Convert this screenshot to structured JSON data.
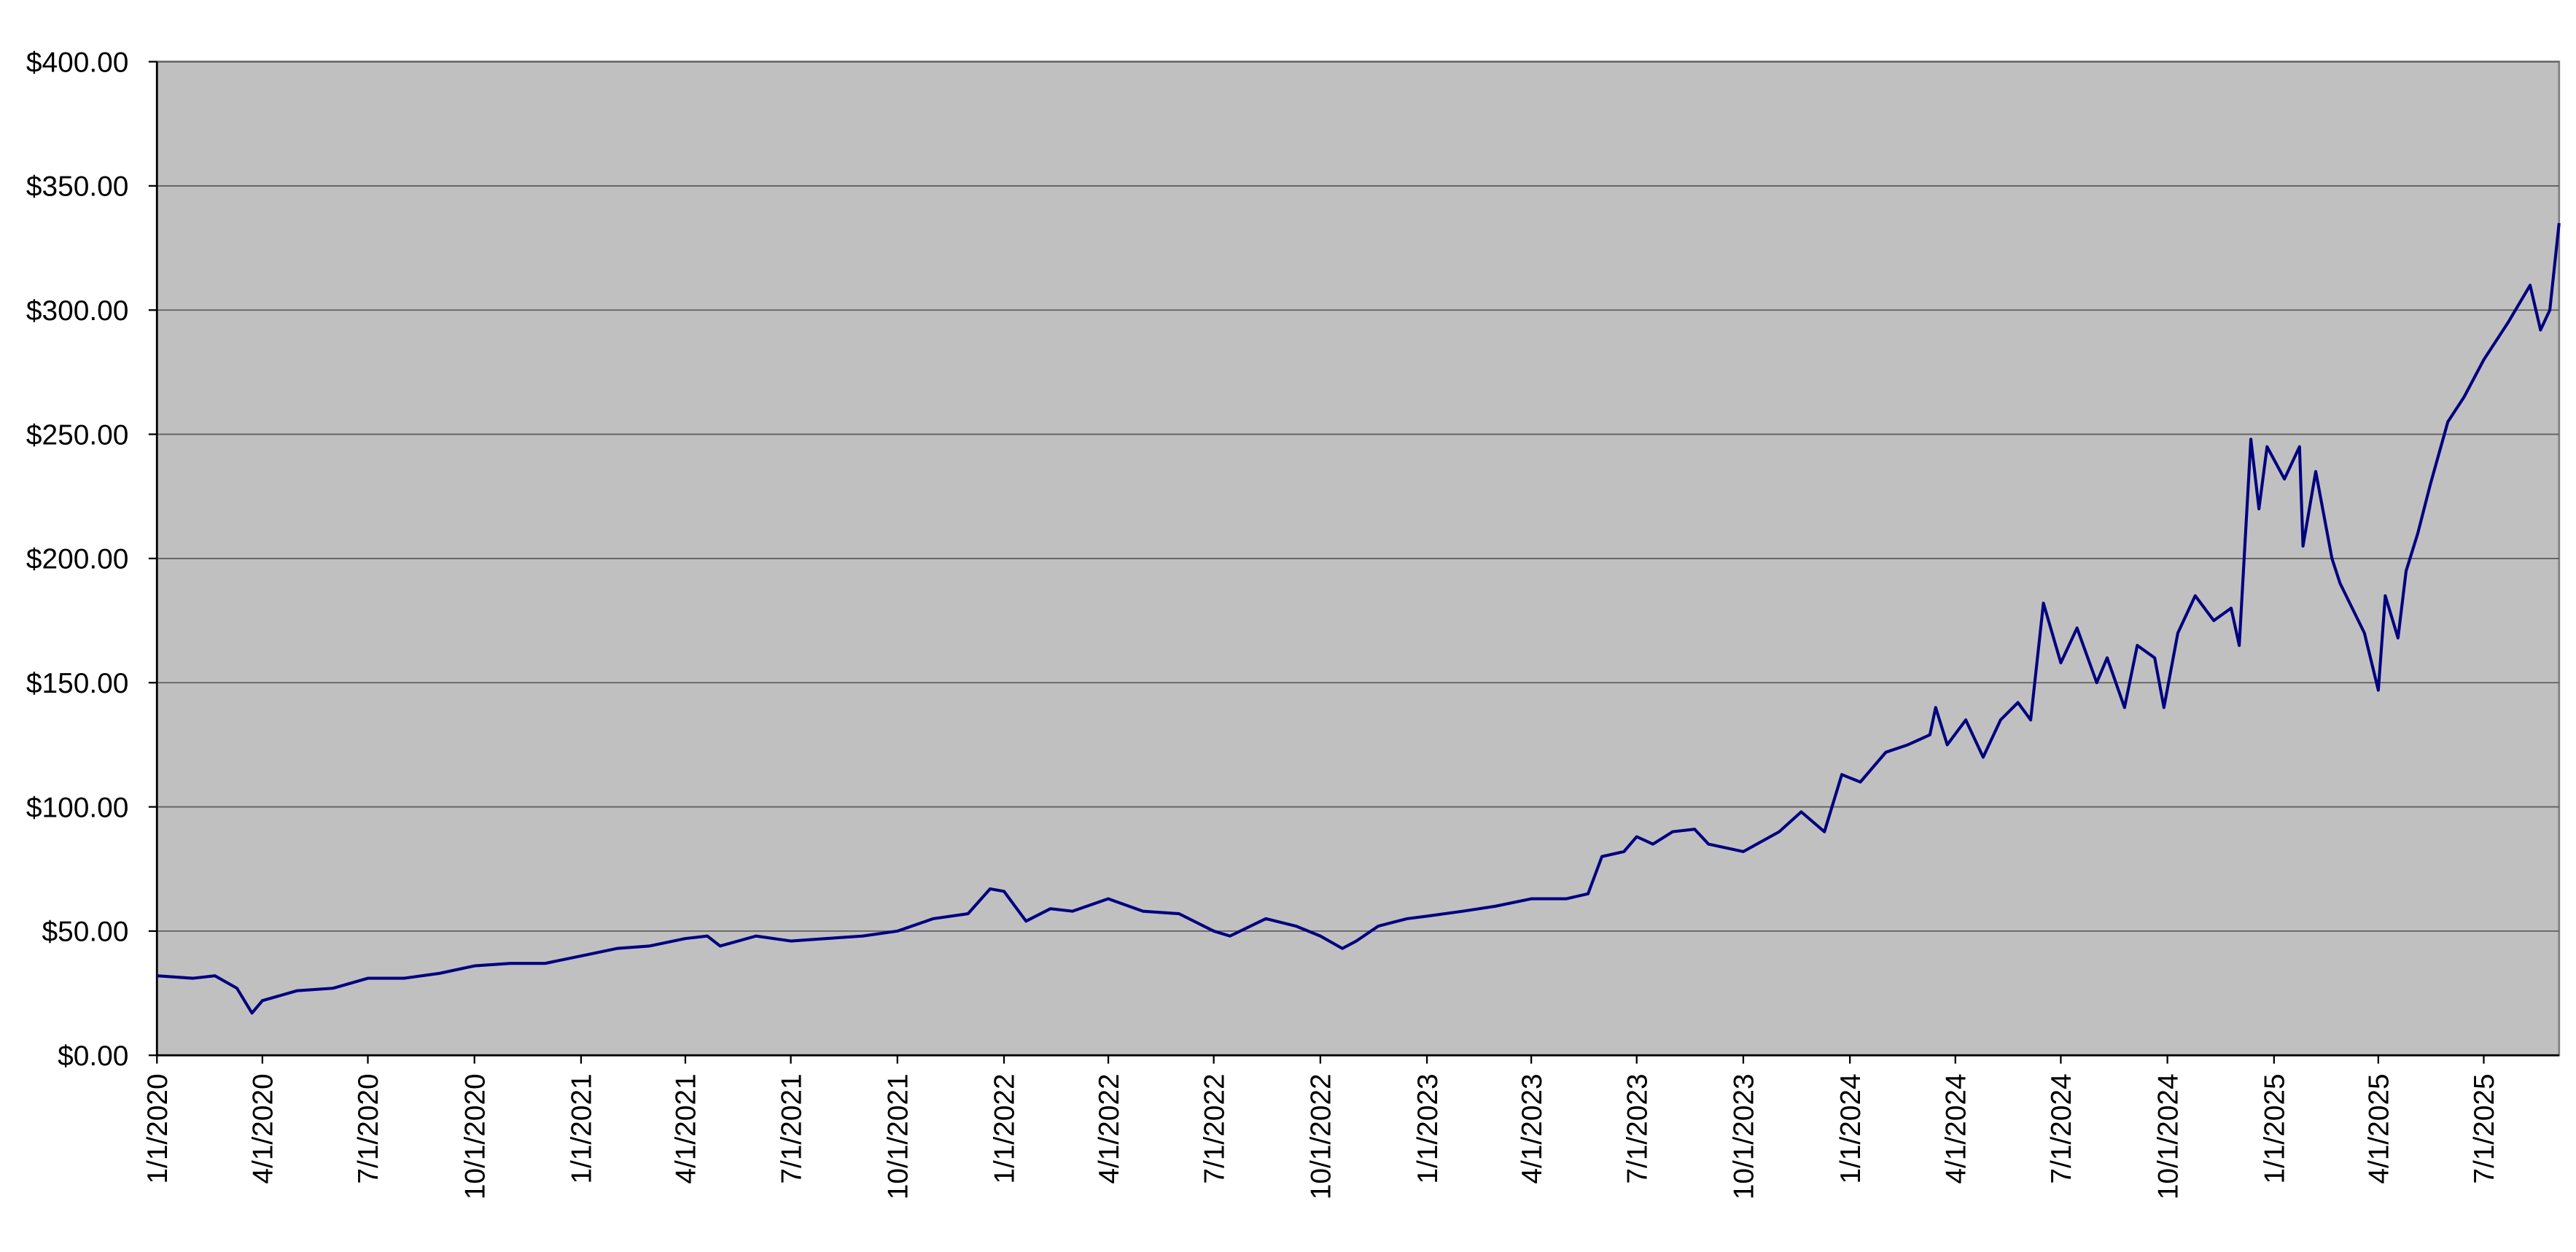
{
  "chart_data": {
    "type": "line",
    "color": "#000080",
    "plot_background": "#c0c0c0",
    "grid": true,
    "xlim": [
      "2020-01-01",
      "2025-09-04"
    ],
    "ylim": [
      0,
      400
    ],
    "yticks": [
      {
        "value": 0,
        "label": "$0.00"
      },
      {
        "value": 50,
        "label": "$50.00"
      },
      {
        "value": 100,
        "label": "$100.00"
      },
      {
        "value": 150,
        "label": "$150.00"
      },
      {
        "value": 200,
        "label": "$200.00"
      },
      {
        "value": 250,
        "label": "$250.00"
      },
      {
        "value": 300,
        "label": "$300.00"
      },
      {
        "value": 350,
        "label": "$350.00"
      },
      {
        "value": 400,
        "label": "$400.00"
      }
    ],
    "xticks": [
      {
        "value": "2020-01-01",
        "label": "1/1/2020"
      },
      {
        "value": "2020-04-01",
        "label": "4/1/2020"
      },
      {
        "value": "2020-07-01",
        "label": "7/1/2020"
      },
      {
        "value": "2020-10-01",
        "label": "10/1/2020"
      },
      {
        "value": "2021-01-01",
        "label": "1/1/2021"
      },
      {
        "value": "2021-04-01",
        "label": "4/1/2021"
      },
      {
        "value": "2021-07-01",
        "label": "7/1/2021"
      },
      {
        "value": "2021-10-01",
        "label": "10/1/2021"
      },
      {
        "value": "2022-01-01",
        "label": "1/1/2022"
      },
      {
        "value": "2022-04-01",
        "label": "4/1/2022"
      },
      {
        "value": "2022-07-01",
        "label": "7/1/2022"
      },
      {
        "value": "2022-10-01",
        "label": "10/1/2022"
      },
      {
        "value": "2023-01-01",
        "label": "1/1/2023"
      },
      {
        "value": "2023-04-01",
        "label": "4/1/2023"
      },
      {
        "value": "2023-07-01",
        "label": "7/1/2023"
      },
      {
        "value": "2023-10-01",
        "label": "10/1/2023"
      },
      {
        "value": "2024-01-01",
        "label": "1/1/2024"
      },
      {
        "value": "2024-04-01",
        "label": "4/1/2024"
      },
      {
        "value": "2024-07-01",
        "label": "7/1/2024"
      },
      {
        "value": "2024-10-01",
        "label": "10/1/2024"
      },
      {
        "value": "2025-01-01",
        "label": "1/1/2025"
      },
      {
        "value": "2025-04-01",
        "label": "4/1/2025"
      },
      {
        "value": "2025-07-01",
        "label": "7/1/2025"
      }
    ],
    "x": [
      "2020-01-01",
      "2020-02-01",
      "2020-02-20",
      "2020-03-10",
      "2020-03-23",
      "2020-04-01",
      "2020-05-01",
      "2020-06-01",
      "2020-07-01",
      "2020-08-01",
      "2020-09-01",
      "2020-10-01",
      "2020-11-01",
      "2020-12-01",
      "2021-01-01",
      "2021-02-01",
      "2021-03-01",
      "2021-04-01",
      "2021-04-20",
      "2021-05-01",
      "2021-06-01",
      "2021-07-01",
      "2021-08-01",
      "2021-09-01",
      "2021-10-01",
      "2021-11-01",
      "2021-12-01",
      "2021-12-20",
      "2022-01-01",
      "2022-01-20",
      "2022-02-10",
      "2022-03-01",
      "2022-04-01",
      "2022-05-01",
      "2022-06-01",
      "2022-07-01",
      "2022-07-15",
      "2022-08-15",
      "2022-09-10",
      "2022-10-01",
      "2022-10-20",
      "2022-11-01",
      "2022-11-20",
      "2022-12-15",
      "2023-01-01",
      "2023-02-01",
      "2023-03-01",
      "2023-04-01",
      "2023-05-01",
      "2023-05-20",
      "2023-06-01",
      "2023-06-20",
      "2023-07-01",
      "2023-07-15",
      "2023-08-01",
      "2023-08-20",
      "2023-09-01",
      "2023-10-01",
      "2023-11-01",
      "2023-11-20",
      "2023-12-10",
      "2023-12-25",
      "2024-01-10",
      "2024-02-01",
      "2024-02-20",
      "2024-03-10",
      "2024-03-15",
      "2024-03-25",
      "2024-04-10",
      "2024-04-25",
      "2024-05-10",
      "2024-05-25",
      "2024-06-05",
      "2024-06-16",
      "2024-07-01",
      "2024-07-15",
      "2024-08-01",
      "2024-08-10",
      "2024-08-25",
      "2024-09-05",
      "2024-09-20",
      "2024-09-28",
      "2024-10-10",
      "2024-10-25",
      "2024-11-10",
      "2024-11-25",
      "2024-12-02",
      "2024-12-12",
      "2024-12-19",
      "2024-12-26",
      "2025-01-10",
      "2025-01-23",
      "2025-01-26",
      "2025-02-06",
      "2025-02-20",
      "2025-02-27",
      "2025-03-20",
      "2025-04-01",
      "2025-04-07",
      "2025-04-18",
      "2025-04-25",
      "2025-05-05",
      "2025-05-16",
      "2025-05-31",
      "2025-06-14",
      "2025-07-01",
      "2025-07-22",
      "2025-08-10",
      "2025-08-19",
      "2025-08-27",
      "2025-09-04"
    ],
    "values": [
      32,
      31,
      32,
      27,
      17,
      22,
      26,
      27,
      31,
      31,
      33,
      36,
      37,
      37,
      40,
      43,
      44,
      47,
      48,
      44,
      48,
      46,
      47,
      48,
      50,
      55,
      57,
      67,
      66,
      54,
      59,
      58,
      63,
      58,
      57,
      50,
      48,
      55,
      52,
      48,
      43,
      46,
      52,
      55,
      56,
      58,
      60,
      63,
      63,
      65,
      80,
      82,
      88,
      85,
      90,
      91,
      85,
      82,
      90,
      98,
      90,
      113,
      110,
      122,
      125,
      129,
      140,
      125,
      135,
      120,
      135,
      142,
      135,
      182,
      158,
      172,
      150,
      160,
      140,
      165,
      160,
      140,
      170,
      185,
      175,
      180,
      165,
      248,
      220,
      245,
      232,
      245,
      205,
      235,
      200,
      190,
      170,
      147,
      185,
      168,
      195,
      210,
      230,
      255,
      265,
      280,
      295,
      310,
      292,
      300,
      335
    ]
  }
}
